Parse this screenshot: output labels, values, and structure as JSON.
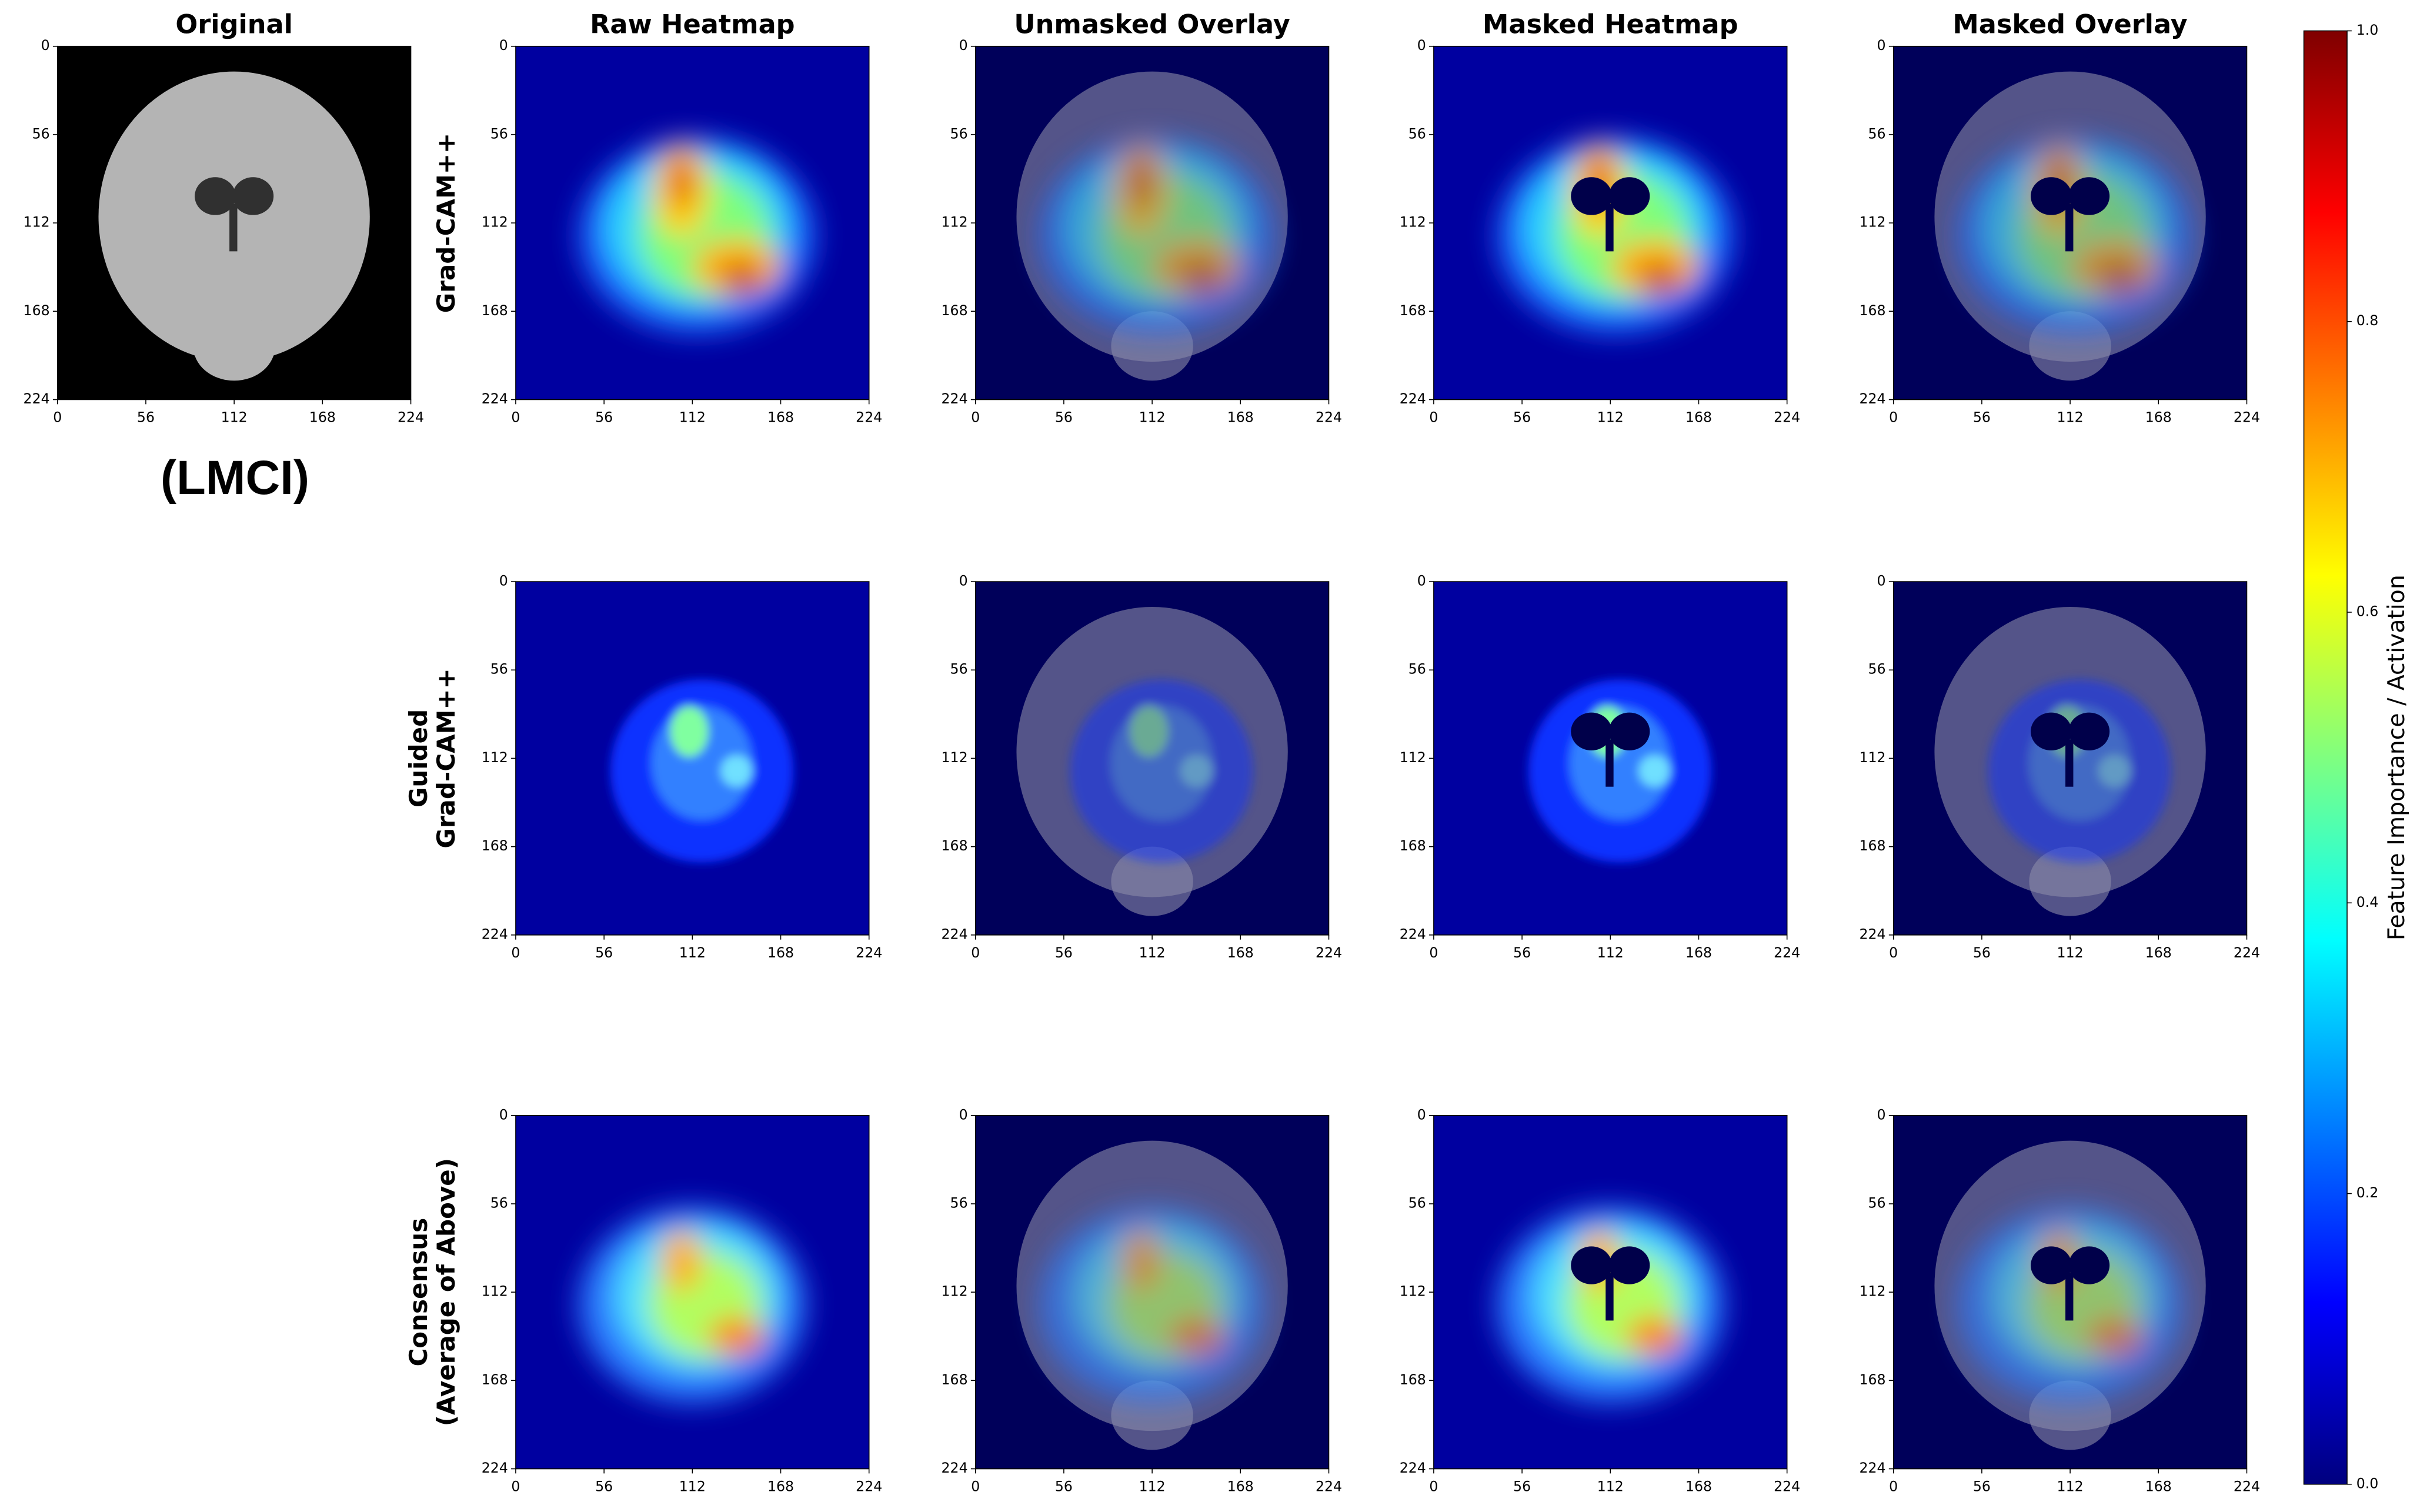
{
  "chart_data": {
    "type": "heatmap",
    "column_titles": [
      "Original",
      "Raw Heatmap",
      "Unmasked Overlay",
      "Masked Heatmap",
      "Masked Overlay"
    ],
    "row_labels": [
      [
        "Grad-CAM++"
      ],
      [
        "Guided",
        "Grad-CAM++"
      ],
      [
        "Consensus",
        "(Average of Above)"
      ]
    ],
    "class_label": "(LMCI)",
    "xlim": [
      0,
      224
    ],
    "ylim": [
      224,
      0
    ],
    "xticks": [
      0,
      56,
      112,
      168,
      224
    ],
    "yticks": [
      0,
      56,
      112,
      168,
      224
    ],
    "colormap": "jet",
    "colorbar": {
      "label": "Feature Importance / Activation",
      "lim": [
        0,
        1
      ],
      "ticks": [
        {
          "value": 0,
          "label": "0.0"
        },
        {
          "value": 0.2,
          "label": "0.2"
        },
        {
          "value": 0.4,
          "label": "0.4"
        },
        {
          "value": 0.6,
          "label": "0.6"
        },
        {
          "value": 0.8,
          "label": "0.8"
        },
        {
          "value": 1,
          "label": "1.0"
        }
      ]
    }
  }
}
